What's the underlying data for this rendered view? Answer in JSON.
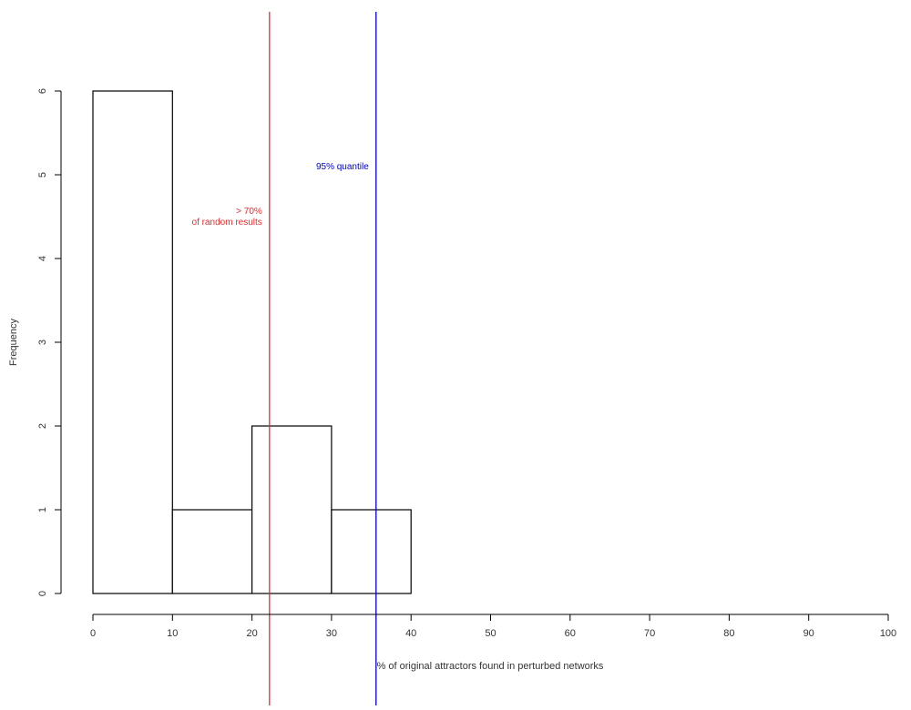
{
  "chart_data": {
    "type": "bar",
    "subtype": "histogram",
    "bins": [
      {
        "from": 0,
        "to": 10,
        "count": 6
      },
      {
        "from": 10,
        "to": 20,
        "count": 1
      },
      {
        "from": 20,
        "to": 30,
        "count": 2
      },
      {
        "from": 30,
        "to": 40,
        "count": 1
      }
    ],
    "xlabel": "% of original attractors found in perturbed networks",
    "ylabel": "Frequency",
    "xlim": [
      0,
      100
    ],
    "ylim": [
      0,
      6
    ],
    "x_ticks": [
      "0",
      "10",
      "20",
      "30",
      "40",
      "50",
      "60",
      "70",
      "80",
      "90",
      "100"
    ],
    "y_ticks": [
      "0",
      "1",
      "2",
      "3",
      "4",
      "5",
      "6"
    ],
    "grid": false,
    "reference_lines": [
      {
        "x": 22.2,
        "color": "#e03030",
        "label_lines": [
          "> 70%",
          "of random results"
        ]
      },
      {
        "x": 35.6,
        "color": "#0000cc",
        "label_lines": [
          "95% quantile"
        ]
      }
    ]
  }
}
